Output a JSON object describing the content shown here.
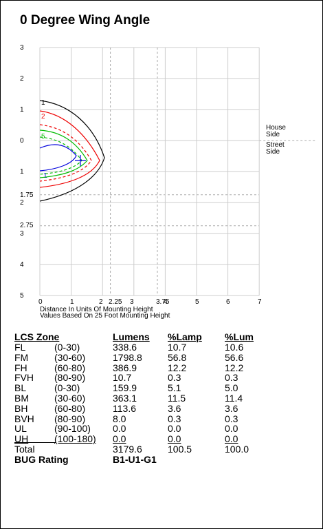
{
  "title": "0 Degree Wing Angle",
  "plot": {
    "y_labels": [
      "3",
      "2",
      "1",
      "0",
      "1",
      "1.75",
      "2",
      "2.75",
      "3",
      "4",
      "5"
    ],
    "x_labels": [
      "0",
      "1",
      "2",
      "2.25",
      "3",
      "3.75",
      "4",
      "5",
      "6",
      "7"
    ],
    "curve_labels": [
      "1",
      "2",
      "5",
      "1"
    ],
    "house_side": "House Side",
    "street_side": "Street Side",
    "notes": [
      "Distance In Units Of Mounting Height",
      "Values Based On 25 Foot Mounting Height"
    ]
  },
  "table": {
    "header": [
      "LCS Zone",
      "Lumens",
      "%Lamp",
      "%Lum"
    ],
    "rows": [
      [
        "FL",
        "(0-30)",
        "338.6",
        "10.7",
        "10.6"
      ],
      [
        "FM",
        "(30-60)",
        "1798.8",
        "56.8",
        "56.6"
      ],
      [
        "FH",
        "(60-80)",
        "386.9",
        "12.2",
        "12.2"
      ],
      [
        "FVH",
        "(80-90)",
        "10.7",
        "0.3",
        "0.3"
      ],
      [
        "BL",
        "(0-30)",
        "159.9",
        "5.1",
        "5.0"
      ],
      [
        "BM",
        "(30-60)",
        "363.1",
        "11.5",
        "11.4"
      ],
      [
        "BH",
        "(60-80)",
        "113.6",
        "3.6",
        "3.6"
      ],
      [
        "BVH",
        "(80-90)",
        "8.0",
        "0.3",
        "0.3"
      ],
      [
        "UL",
        "(90-100)",
        "0.0",
        "0.0",
        "0.0"
      ],
      [
        "UH",
        "(100-180)",
        "0.0",
        "0.0",
        "0.0"
      ]
    ],
    "total": [
      "Total",
      "3179.6",
      "100.5",
      "100.0"
    ],
    "bug": [
      "BUG Rating",
      "B1-U1-G1"
    ]
  }
}
